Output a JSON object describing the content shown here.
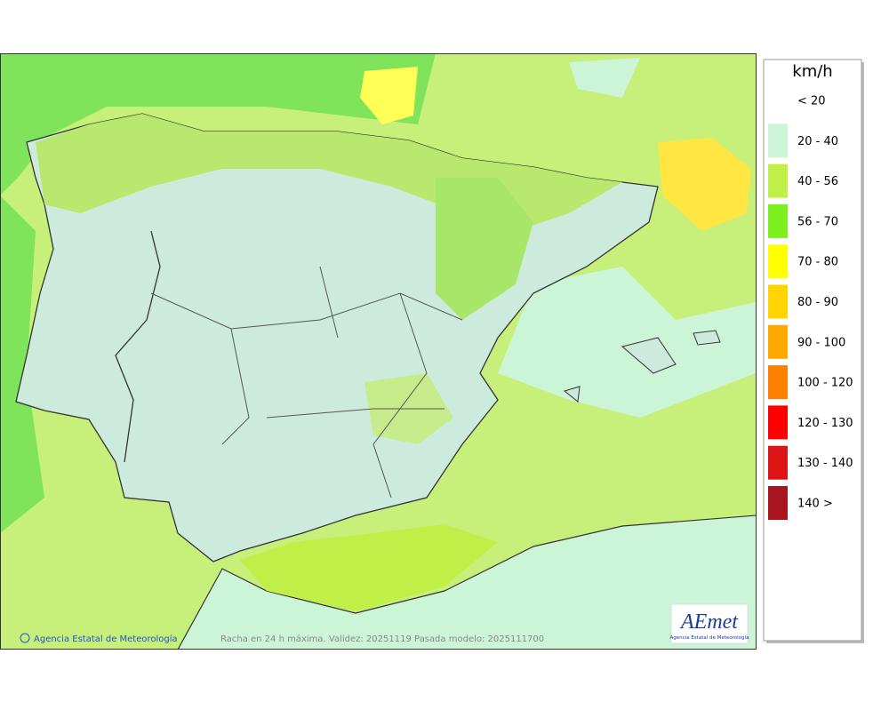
{
  "map": {
    "caption": "Racha en 24 h máxima. Validez: 20251119 Pasada modelo: 2025111700",
    "credit": "Agencia Estatal de Meteorología",
    "logo": {
      "name": "AEmet",
      "subtitle": "Agencia Estatal de Meteorología"
    }
  },
  "legend": {
    "unit": "km/h",
    "items": [
      {
        "label": "< 20",
        "color": "#ffffff"
      },
      {
        "label": "20 - 40",
        "color": "#ccf5d8"
      },
      {
        "label": "40 - 56",
        "color": "#c0f048"
      },
      {
        "label": "56 - 70",
        "color": "#7cf01c"
      },
      {
        "label": "70 - 80",
        "color": "#ffff00"
      },
      {
        "label": "80 - 90",
        "color": "#ffd400"
      },
      {
        "label": "90 - 100",
        "color": "#ffa800"
      },
      {
        "label": "100 - 120",
        "color": "#ff8000"
      },
      {
        "label": "120 - 130",
        "color": "#ff0000"
      },
      {
        "label": "130 - 140",
        "color": "#dc1414"
      },
      {
        "label": "140 >",
        "color": "#aa1420"
      }
    ]
  }
}
